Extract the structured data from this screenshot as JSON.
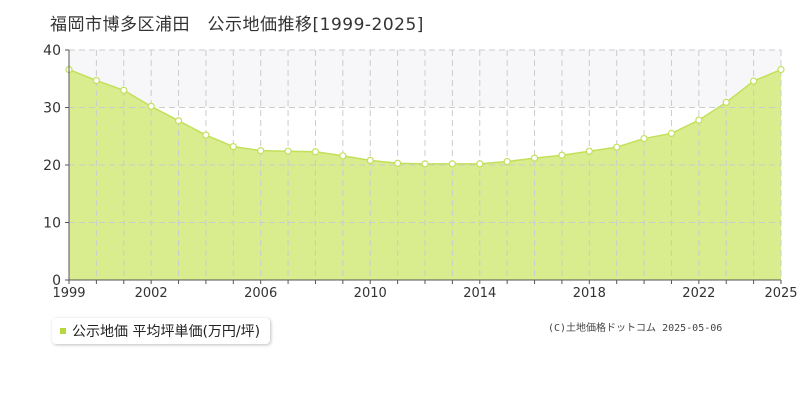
{
  "title": "福岡市博多区浦田　公示地価推移[1999-2025]",
  "legend": {
    "label": "公示地価 平均坪単価(万円/坪)",
    "swatch_color": "#b5d83c"
  },
  "copyright": "(C)土地価格ドットコム 2025-05-06",
  "colors": {
    "fill": "#d9ec8e",
    "line": "#c3e05c",
    "marker_stroke": "#c3e05c",
    "marker_fill": "#ffffff",
    "band": "#f7f7fa",
    "grid": "#cccccc",
    "axis": "#555555",
    "tick_text": "#333333"
  },
  "chart_data": {
    "type": "area",
    "title": "福岡市博多区浦田　公示地価推移[1999-2025]",
    "xlabel": "",
    "ylabel": "",
    "x": [
      1999,
      2000,
      2001,
      2002,
      2003,
      2004,
      2005,
      2006,
      2007,
      2008,
      2009,
      2010,
      2011,
      2012,
      2013,
      2014,
      2015,
      2016,
      2017,
      2018,
      2019,
      2020,
      2021,
      2022,
      2023,
      2024,
      2025
    ],
    "x_tick_labels": [
      "1999",
      "2002",
      "2006",
      "2010",
      "2014",
      "2018",
      "2022",
      "2025"
    ],
    "y_ticks": [
      0,
      10,
      20,
      30,
      40
    ],
    "ylim": [
      0,
      40
    ],
    "xlim": [
      1999,
      2025
    ],
    "grid": true,
    "series": [
      {
        "name": "公示地価 平均坪単価(万円/坪)",
        "values": [
          36.6,
          34.7,
          33.0,
          30.2,
          27.7,
          25.2,
          23.2,
          22.5,
          22.4,
          22.3,
          21.6,
          20.8,
          20.3,
          20.2,
          20.2,
          20.2,
          20.6,
          21.2,
          21.7,
          22.4,
          23.1,
          24.6,
          25.5,
          27.8,
          30.9,
          34.6,
          36.6
        ]
      }
    ]
  }
}
